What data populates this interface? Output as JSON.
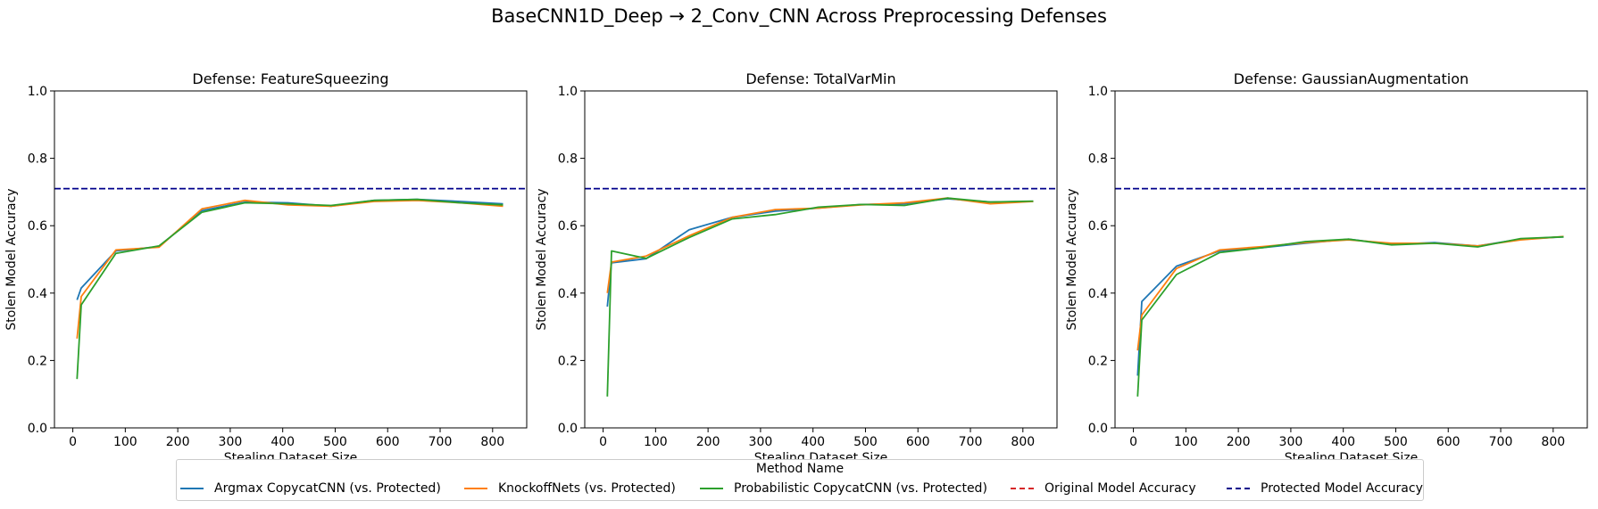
{
  "figure_title": "BaseCNN1D_Deep → 2_Conv_CNN Across Preprocessing Defenses",
  "legend": {
    "title": "Method Name",
    "entries": [
      {
        "label": "Argmax CopycatCNN (vs. Protected)",
        "color": "#1f77b4",
        "style": "solid"
      },
      {
        "label": "KnockoffNets (vs. Protected)",
        "color": "#ff7f0e",
        "style": "solid"
      },
      {
        "label": "Probabilistic CopycatCNN (vs. Protected)",
        "color": "#2ca02c",
        "style": "solid"
      },
      {
        "label": "Original Model Accuracy",
        "color": "#d62728",
        "style": "dashed"
      },
      {
        "label": "Protected Model Accuracy",
        "color": "#00008b",
        "style": "dashed"
      }
    ]
  },
  "chart_data": [
    {
      "type": "line",
      "title": "Defense: FeatureSqueezing",
      "xlabel": "Stealing Dataset Size",
      "ylabel": "Stolen Model Accuracy",
      "xlim": [
        -35,
        865
      ],
      "ylim": [
        0.0,
        1.0
      ],
      "xticks": [
        0,
        100,
        200,
        300,
        400,
        500,
        600,
        700,
        800
      ],
      "yticks": [
        0.0,
        0.2,
        0.4,
        0.6,
        0.8,
        1.0
      ],
      "protected_accuracy": 0.71,
      "series": [
        {
          "name": "Argmax CopycatCNN (vs. Protected)",
          "x": [
            8,
            16,
            82,
            164,
            246,
            328,
            410,
            492,
            574,
            656,
            738,
            820
          ],
          "y": [
            0.38,
            0.415,
            0.525,
            0.538,
            0.645,
            0.67,
            0.668,
            0.658,
            0.675,
            0.678,
            0.672,
            0.665
          ]
        },
        {
          "name": "KnockoffNets (vs. Protected)",
          "x": [
            8,
            16,
            82,
            164,
            246,
            328,
            410,
            492,
            574,
            656,
            738,
            820
          ],
          "y": [
            0.265,
            0.39,
            0.528,
            0.536,
            0.65,
            0.675,
            0.662,
            0.658,
            0.672,
            0.675,
            0.668,
            0.658
          ]
        },
        {
          "name": "Probabilistic CopycatCNN (vs. Protected)",
          "x": [
            8,
            16,
            82,
            164,
            246,
            328,
            410,
            492,
            574,
            656,
            738,
            820
          ],
          "y": [
            0.145,
            0.365,
            0.518,
            0.54,
            0.64,
            0.668,
            0.665,
            0.66,
            0.675,
            0.678,
            0.668,
            0.662
          ]
        }
      ]
    },
    {
      "type": "line",
      "title": "Defense: TotalVarMin",
      "xlabel": "Stealing Dataset Size",
      "ylabel": "Stolen Model Accuracy",
      "xlim": [
        -35,
        865
      ],
      "ylim": [
        0.0,
        1.0
      ],
      "xticks": [
        0,
        100,
        200,
        300,
        400,
        500,
        600,
        700,
        800
      ],
      "yticks": [
        0.0,
        0.2,
        0.4,
        0.6,
        0.8,
        1.0
      ],
      "protected_accuracy": 0.71,
      "series": [
        {
          "name": "Argmax CopycatCNN (vs. Protected)",
          "x": [
            8,
            16,
            82,
            164,
            246,
            328,
            410,
            492,
            574,
            656,
            738,
            820
          ],
          "y": [
            0.36,
            0.49,
            0.502,
            0.588,
            0.625,
            0.643,
            0.652,
            0.663,
            0.665,
            0.68,
            0.67,
            0.672
          ]
        },
        {
          "name": "KnockoffNets (vs. Protected)",
          "x": [
            8,
            16,
            82,
            164,
            246,
            328,
            410,
            492,
            574,
            656,
            738,
            820
          ],
          "y": [
            0.4,
            0.492,
            0.51,
            0.57,
            0.625,
            0.648,
            0.652,
            0.662,
            0.668,
            0.682,
            0.665,
            0.672
          ]
        },
        {
          "name": "Probabilistic CopycatCNN (vs. Protected)",
          "x": [
            8,
            16,
            82,
            164,
            246,
            328,
            410,
            492,
            574,
            656,
            738,
            820
          ],
          "y": [
            0.093,
            0.525,
            0.503,
            0.565,
            0.62,
            0.633,
            0.655,
            0.663,
            0.66,
            0.682,
            0.67,
            0.673
          ]
        }
      ]
    },
    {
      "type": "line",
      "title": "Defense: GaussianAugmentation",
      "xlabel": "Stealing Dataset Size",
      "ylabel": "Stolen Model Accuracy",
      "xlim": [
        -35,
        865
      ],
      "ylim": [
        0.0,
        1.0
      ],
      "xticks": [
        0,
        100,
        200,
        300,
        400,
        500,
        600,
        700,
        800
      ],
      "yticks": [
        0.0,
        0.2,
        0.4,
        0.6,
        0.8,
        1.0
      ],
      "protected_accuracy": 0.71,
      "series": [
        {
          "name": "Argmax CopycatCNN (vs. Protected)",
          "x": [
            8,
            16,
            82,
            164,
            246,
            328,
            410,
            492,
            574,
            656,
            738,
            820
          ],
          "y": [
            0.155,
            0.375,
            0.48,
            0.525,
            0.535,
            0.548,
            0.56,
            0.545,
            0.55,
            0.54,
            0.56,
            0.567
          ]
        },
        {
          "name": "KnockoffNets (vs. Protected)",
          "x": [
            8,
            16,
            82,
            164,
            246,
            328,
            410,
            492,
            574,
            656,
            738,
            820
          ],
          "y": [
            0.23,
            0.335,
            0.473,
            0.528,
            0.538,
            0.55,
            0.558,
            0.548,
            0.548,
            0.54,
            0.558,
            0.568
          ]
        },
        {
          "name": "Probabilistic CopycatCNN (vs. Protected)",
          "x": [
            8,
            16,
            82,
            164,
            246,
            328,
            410,
            492,
            574,
            656,
            738,
            820
          ],
          "y": [
            0.093,
            0.32,
            0.455,
            0.52,
            0.535,
            0.553,
            0.56,
            0.543,
            0.548,
            0.537,
            0.562,
            0.567
          ]
        }
      ]
    }
  ]
}
